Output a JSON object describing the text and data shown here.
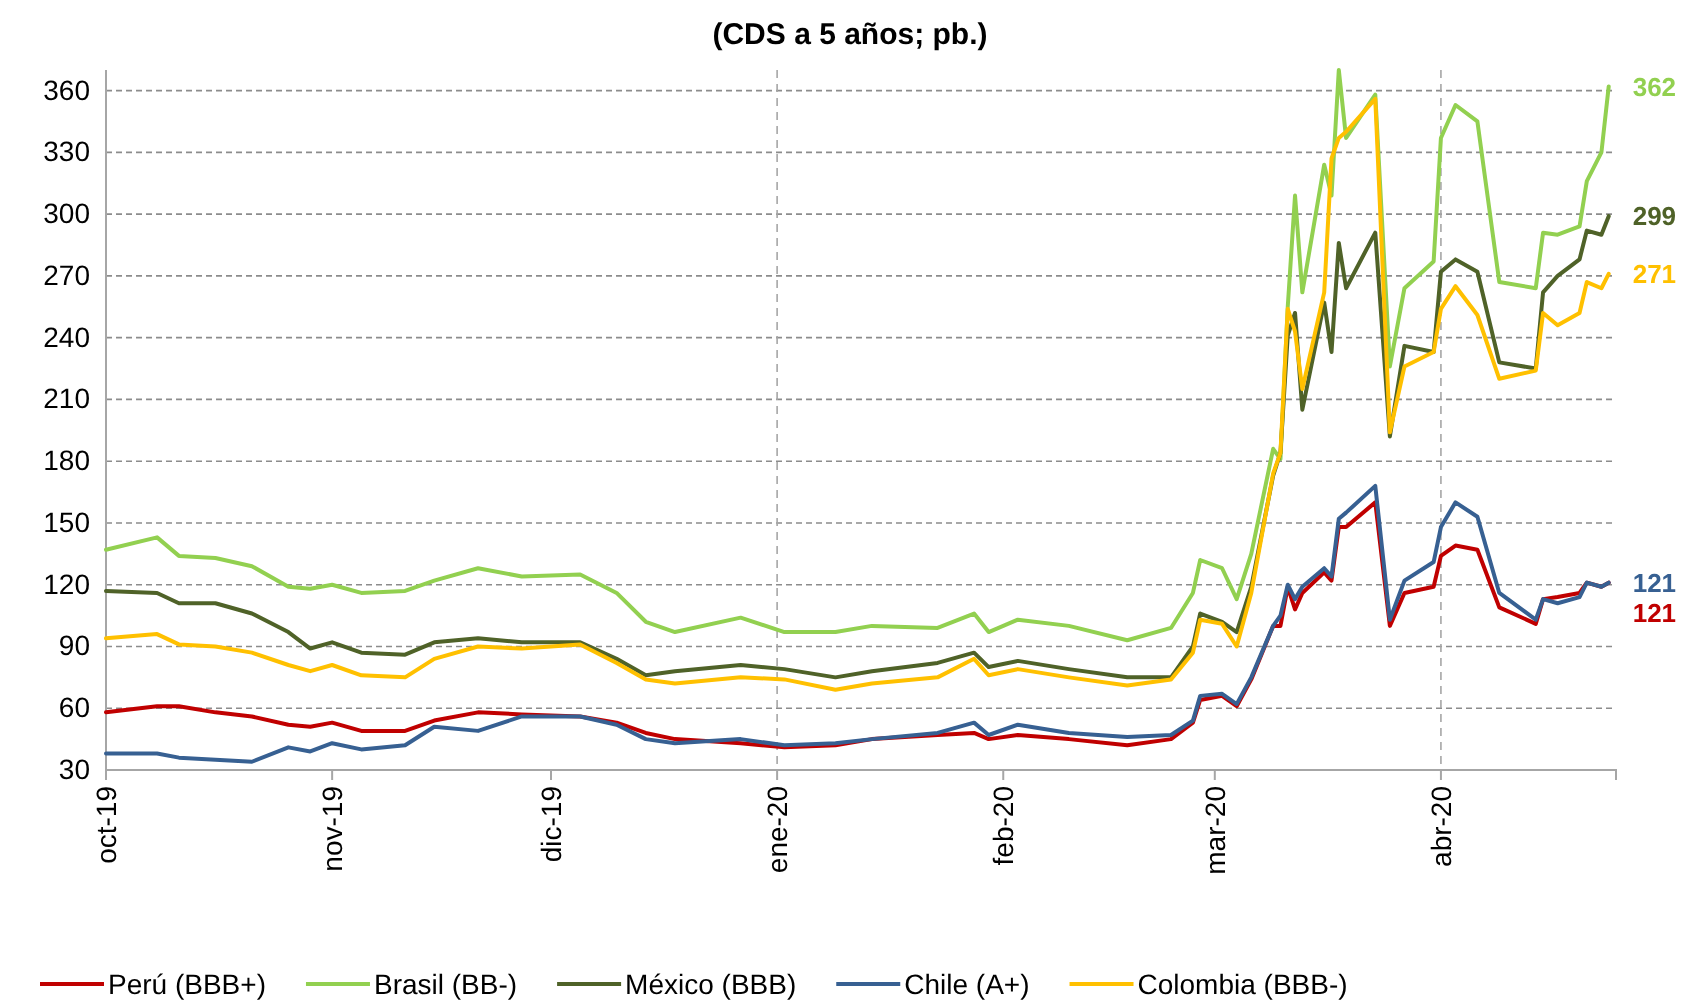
{
  "chart_data": {
    "type": "line",
    "title": "(CDS a 5 años; pb.)",
    "x": [
      "2019-10-01",
      "2019-10-08",
      "2019-10-11",
      "2019-10-16",
      "2019-10-21",
      "2019-10-26",
      "2019-10-29",
      "2019-11-01",
      "2019-11-05",
      "2019-11-11",
      "2019-11-15",
      "2019-11-21",
      "2019-11-27",
      "2019-12-05",
      "2019-12-10",
      "2019-12-14",
      "2019-12-18",
      "2019-12-27",
      "2020-01-02",
      "2020-01-09",
      "2020-01-14",
      "2020-01-23",
      "2020-01-28",
      "2020-01-30",
      "2020-02-03",
      "2020-02-10",
      "2020-02-18",
      "2020-02-24",
      "2020-02-27",
      "2020-02-28",
      "2020-03-02",
      "2020-03-04",
      "2020-03-06",
      "2020-03-09",
      "2020-03-10",
      "2020-03-11",
      "2020-03-12",
      "2020-03-13",
      "2020-03-16",
      "2020-03-17",
      "2020-03-18",
      "2020-03-19",
      "2020-03-23",
      "2020-03-25",
      "2020-03-27",
      "2020-03-31",
      "2020-04-01",
      "2020-04-03",
      "2020-04-06",
      "2020-04-09",
      "2020-04-14",
      "2020-04-15",
      "2020-04-17",
      "2020-04-20",
      "2020-04-21",
      "2020-04-23",
      "2020-04-24"
    ],
    "series": [
      {
        "name": "Perú (BBB+)",
        "color": "#c00000",
        "values": [
          58,
          61,
          61,
          58,
          56,
          52,
          51,
          53,
          49,
          49,
          54,
          58,
          57,
          56,
          53,
          48,
          45,
          43,
          41,
          42,
          45,
          47,
          48,
          45,
          47,
          45,
          42,
          45,
          53,
          64,
          66,
          61,
          74,
          100,
          100,
          119,
          108,
          116,
          126,
          122,
          148,
          148,
          160,
          100,
          116,
          119,
          134,
          139,
          137,
          109,
          101,
          113,
          114,
          116,
          121,
          119,
          121
        ],
        "value_labels": [
          null,
          null,
          null,
          null,
          null,
          null,
          null,
          null,
          null,
          null,
          null,
          null,
          null,
          null,
          null,
          null,
          null,
          null,
          null,
          null,
          null,
          null,
          null,
          null,
          null,
          null,
          null,
          null,
          null,
          null,
          null,
          null,
          null,
          null,
          null,
          null,
          null,
          null,
          null,
          null,
          null,
          null,
          null,
          null,
          null,
          null,
          null,
          null,
          null,
          null,
          null,
          null,
          null,
          null,
          null,
          null,
          "121"
        ]
      },
      {
        "name": "Brasil (BB-)",
        "color": "#92d050",
        "values": [
          137,
          143,
          134,
          133,
          129,
          119,
          118,
          120,
          116,
          117,
          122,
          128,
          124,
          125,
          116,
          102,
          97,
          104,
          97,
          97,
          100,
          99,
          106,
          97,
          103,
          100,
          93,
          99,
          116,
          132,
          128,
          113,
          135,
          186,
          181,
          255,
          309,
          262,
          324,
          309,
          370,
          337,
          358,
          226,
          264,
          277,
          337,
          353,
          345,
          267,
          264,
          291,
          290,
          294,
          316,
          330,
          362
        ],
        "value_labels": [
          null,
          null,
          null,
          null,
          null,
          null,
          null,
          null,
          null,
          null,
          null,
          null,
          null,
          null,
          null,
          null,
          null,
          null,
          null,
          null,
          null,
          null,
          null,
          null,
          null,
          null,
          null,
          null,
          null,
          null,
          null,
          null,
          null,
          null,
          null,
          null,
          null,
          null,
          null,
          null,
          null,
          null,
          null,
          null,
          null,
          null,
          null,
          null,
          null,
          null,
          null,
          null,
          null,
          null,
          null,
          null,
          "362"
        ]
      },
      {
        "name": "México (BBB)",
        "color": "#4f6228",
        "values": [
          117,
          116,
          111,
          111,
          106,
          97,
          89,
          92,
          87,
          86,
          92,
          94,
          92,
          92,
          84,
          76,
          78,
          81,
          79,
          75,
          78,
          82,
          87,
          80,
          83,
          79,
          75,
          75,
          90,
          106,
          102,
          97,
          119,
          173,
          184,
          241,
          252,
          205,
          257,
          233,
          286,
          264,
          291,
          192,
          236,
          233,
          272,
          278,
          272,
          228,
          225,
          262,
          270,
          278,
          292,
          290,
          299
        ],
        "value_labels": [
          null,
          null,
          null,
          null,
          null,
          null,
          null,
          null,
          null,
          null,
          null,
          null,
          null,
          null,
          null,
          null,
          null,
          null,
          null,
          null,
          null,
          null,
          null,
          null,
          null,
          null,
          null,
          null,
          null,
          null,
          null,
          null,
          null,
          null,
          null,
          null,
          null,
          null,
          null,
          null,
          null,
          null,
          null,
          null,
          null,
          null,
          null,
          null,
          null,
          null,
          null,
          null,
          null,
          null,
          null,
          null,
          "299"
        ]
      },
      {
        "name": "Chile (A+)",
        "color": "#376092",
        "values": [
          38,
          38,
          36,
          35,
          34,
          41,
          39,
          43,
          40,
          42,
          51,
          49,
          56,
          56,
          52,
          45,
          43,
          45,
          42,
          43,
          45,
          48,
          53,
          47,
          52,
          48,
          46,
          47,
          54,
          66,
          67,
          62,
          75,
          100,
          105,
          120,
          113,
          119,
          128,
          124,
          152,
          155,
          168,
          103,
          122,
          131,
          148,
          160,
          153,
          116,
          103,
          113,
          111,
          114,
          121,
          119,
          121
        ],
        "value_labels": [
          null,
          null,
          null,
          null,
          null,
          null,
          null,
          null,
          null,
          null,
          null,
          null,
          null,
          null,
          null,
          null,
          null,
          null,
          null,
          null,
          null,
          null,
          null,
          null,
          null,
          null,
          null,
          null,
          null,
          null,
          null,
          null,
          null,
          null,
          null,
          null,
          null,
          null,
          null,
          null,
          null,
          null,
          null,
          null,
          null,
          null,
          null,
          null,
          null,
          null,
          null,
          null,
          null,
          null,
          null,
          null,
          "121"
        ]
      },
      {
        "name": "Colombia (BBB-)",
        "color": "#ffc000",
        "values": [
          94,
          96,
          91,
          90,
          87,
          81,
          78,
          81,
          76,
          75,
          84,
          90,
          89,
          91,
          82,
          74,
          72,
          75,
          74,
          69,
          72,
          75,
          84,
          76,
          79,
          75,
          71,
          74,
          87,
          103,
          101,
          90,
          116,
          174,
          184,
          254,
          243,
          215,
          262,
          327,
          337,
          340,
          356,
          194,
          226,
          233,
          254,
          265,
          251,
          220,
          224,
          252,
          246,
          252,
          267,
          264,
          271
        ],
        "value_labels": [
          null,
          null,
          null,
          null,
          null,
          null,
          null,
          null,
          null,
          null,
          null,
          null,
          null,
          null,
          null,
          null,
          null,
          null,
          null,
          null,
          null,
          null,
          null,
          null,
          null,
          null,
          null,
          null,
          null,
          null,
          null,
          null,
          null,
          null,
          null,
          null,
          null,
          null,
          null,
          null,
          null,
          null,
          null,
          null,
          null,
          null,
          null,
          null,
          null,
          null,
          null,
          null,
          null,
          null,
          null,
          null,
          "271"
        ]
      }
    ],
    "xlim": [
      "2019-10-01",
      "2020-04-25"
    ],
    "xticks": [
      {
        "value": "2019-10-01",
        "label": "oct-19"
      },
      {
        "value": "2019-11-01",
        "label": "nov-19"
      },
      {
        "value": "2019-12-01",
        "label": "dic-19"
      },
      {
        "value": "2020-01-01",
        "label": "ene-20"
      },
      {
        "value": "2020-02-01",
        "label": "feb-20"
      },
      {
        "value": "2020-03-01",
        "label": "mar-20"
      },
      {
        "value": "2020-04-01",
        "label": "abr-20"
      }
    ],
    "ylim": [
      30,
      370
    ],
    "yticks": [
      30,
      60,
      90,
      120,
      150,
      180,
      210,
      240,
      270,
      300,
      330,
      360
    ],
    "grid": "y",
    "legend": "bottom",
    "marker": "none",
    "line_style": "solid",
    "ref_lines": [
      {
        "axis": "x",
        "value": "2020-01-01",
        "color": "#a6a6a6",
        "line_style": "dashed"
      },
      {
        "axis": "x",
        "value": "2020-04-01",
        "color": "#a6a6a6",
        "line_style": "dashed"
      }
    ]
  }
}
